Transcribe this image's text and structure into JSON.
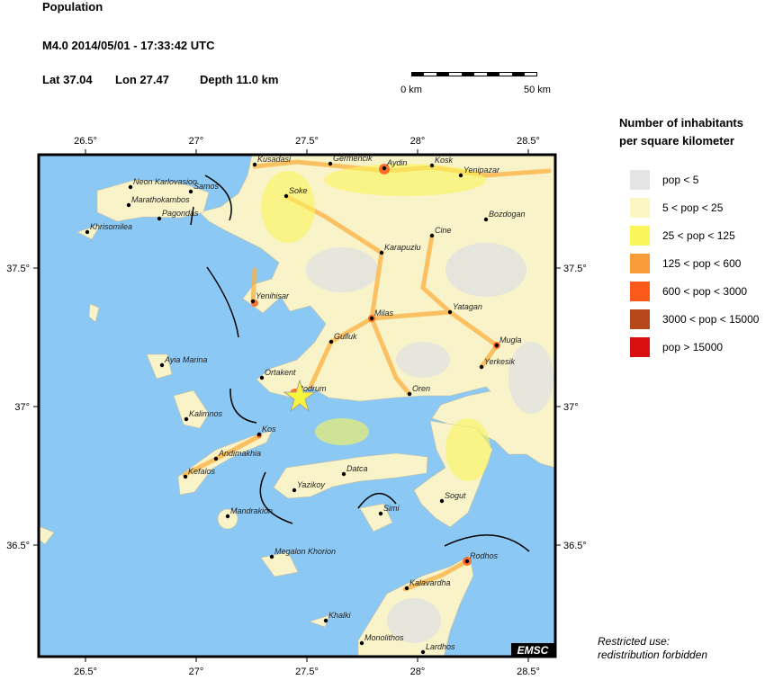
{
  "header": {
    "title": "Population",
    "event": "M4.0  2014/05/01 - 17:33:42 UTC",
    "lat": "Lat 37.04",
    "lon": "Lon 27.47",
    "depth": "Depth  11.0 km"
  },
  "scale": {
    "start": "0 km",
    "end": "50 km"
  },
  "map": {
    "lon_ticks": [
      "26.5°",
      "27°",
      "27.5°",
      "28°",
      "28.5°"
    ],
    "lat_ticks": [
      "37.5°",
      "37°",
      "36.5°"
    ],
    "cities": [
      "Kusadasi",
      "Germencik",
      "Aydin",
      "Kosk",
      "Yenipazar",
      "Soke",
      "Bozdogan",
      "Cine",
      "Karapuzlu",
      "Yenihisar",
      "Milas",
      "Yatagan",
      "Gulluk",
      "Mugla",
      "Yerkesik",
      "Ortakent",
      "Bodrum",
      "Oren",
      "Neon Karlovasion",
      "Samos",
      "Marathokambos",
      "Pagondas",
      "Khrisomilea",
      "Ayia Marina",
      "Kalimnos",
      "Kos",
      "Andimakhia",
      "Kefalos",
      "Datca",
      "Yazikoy",
      "Sogut",
      "Simi",
      "Mandrakion",
      "Megalon Khorion",
      "Rodhos",
      "Kalavardha",
      "Khalki",
      "Monolithos",
      "Lardhos"
    ],
    "badge": "EMSC"
  },
  "legend": {
    "title": [
      "Number of inhabitants",
      "per square kilometer"
    ],
    "items": [
      {
        "label": "pop < 5",
        "color": "#e4e4e4"
      },
      {
        "label": "5 < pop < 25",
        "color": "#fbf6c4"
      },
      {
        "label": "25 < pop < 125",
        "color": "#faf55a"
      },
      {
        "label": "125 < pop < 600",
        "color": "#fb9c3a"
      },
      {
        "label": "600 < pop < 3000",
        "color": "#fb5a1a"
      },
      {
        "label": "3000 < pop < 15000",
        "color": "#b5481a"
      },
      {
        "label": "pop > 15000",
        "color": "#d81010"
      }
    ]
  },
  "footer": [
    "Restricted use:",
    "redistribution forbidden"
  ]
}
